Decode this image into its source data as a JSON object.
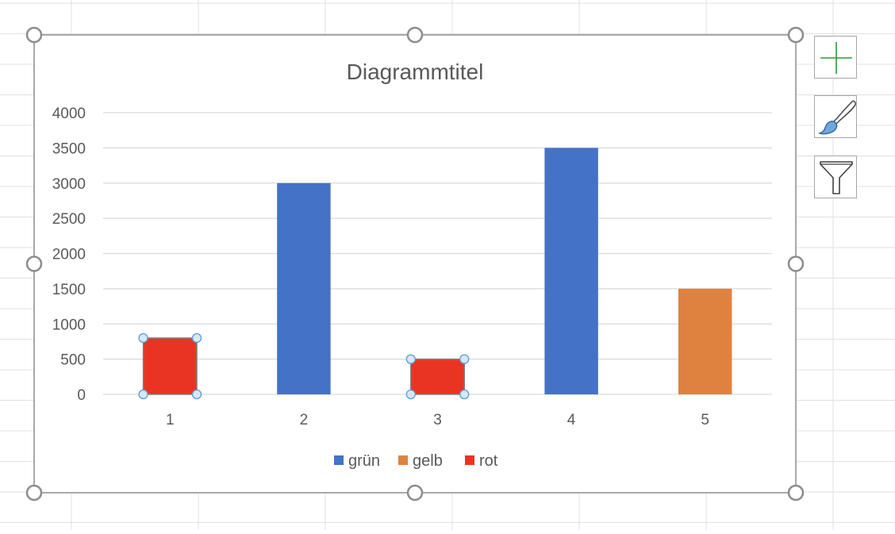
{
  "chart_data": {
    "type": "bar",
    "title": "Diagrammtitel",
    "categories": [
      "1",
      "2",
      "3",
      "4",
      "5"
    ],
    "values": [
      800,
      3000,
      500,
      3500,
      1500
    ],
    "point_series": [
      "rot",
      "grün",
      "rot",
      "grün",
      "gelb"
    ],
    "selected_series": "rot",
    "ylim": [
      0,
      4000
    ],
    "yticks": [
      0,
      500,
      1000,
      1500,
      2000,
      2500,
      3000,
      3500,
      4000
    ],
    "grid": true,
    "legend_position": "bottom",
    "series": [
      {
        "name": "grün",
        "color": "#4472C4"
      },
      {
        "name": "gelb",
        "color": "#E0823F"
      },
      {
        "name": "rot",
        "color": "#EA3423"
      }
    ]
  },
  "chart_tools": {
    "elements_icon": "plus-icon",
    "styles_icon": "paintbrush-icon",
    "filters_icon": "funnel-icon"
  }
}
